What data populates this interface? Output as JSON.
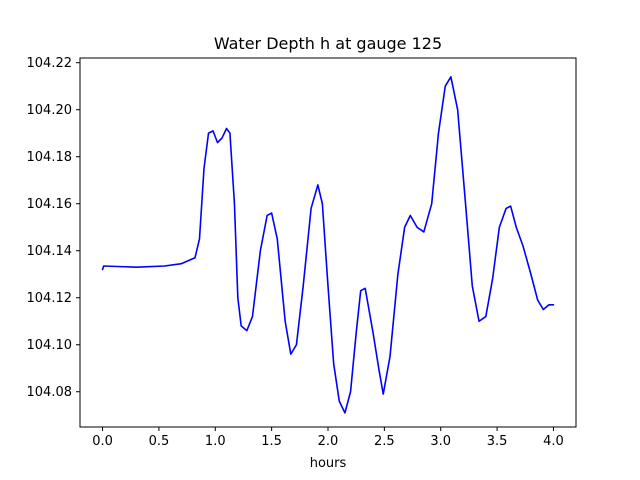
{
  "chart_data": {
    "type": "line",
    "title": "Water Depth h at gauge 125",
    "xlabel": "hours",
    "ylabel": "",
    "xlim": [
      -0.2,
      4.2
    ],
    "ylim": [
      104.065,
      104.222
    ],
    "xticks": [
      0.0,
      0.5,
      1.0,
      1.5,
      2.0,
      2.5,
      3.0,
      3.5,
      4.0
    ],
    "xtick_labels": [
      "0.0",
      "0.5",
      "1.0",
      "1.5",
      "2.0",
      "2.5",
      "3.0",
      "3.5",
      "4.0"
    ],
    "yticks": [
      104.08,
      104.1,
      104.12,
      104.14,
      104.16,
      104.18,
      104.2,
      104.22
    ],
    "ytick_labels": [
      "104.08",
      "104.10",
      "104.12",
      "104.14",
      "104.16",
      "104.18",
      "104.20",
      "104.22"
    ],
    "grid": false,
    "series": [
      {
        "color": "#0000ff",
        "points": [
          [
            0.0,
            104.132
          ],
          [
            0.01,
            104.1335
          ],
          [
            0.3,
            104.133
          ],
          [
            0.55,
            104.1335
          ],
          [
            0.7,
            104.1345
          ],
          [
            0.82,
            104.137
          ],
          [
            0.86,
            104.145
          ],
          [
            0.9,
            104.175
          ],
          [
            0.94,
            104.19
          ],
          [
            0.98,
            104.191
          ],
          [
            1.02,
            104.186
          ],
          [
            1.06,
            104.188
          ],
          [
            1.1,
            104.192
          ],
          [
            1.13,
            104.19
          ],
          [
            1.17,
            104.16
          ],
          [
            1.2,
            104.12
          ],
          [
            1.23,
            104.108
          ],
          [
            1.28,
            104.106
          ],
          [
            1.33,
            104.112
          ],
          [
            1.4,
            104.14
          ],
          [
            1.46,
            104.155
          ],
          [
            1.5,
            104.156
          ],
          [
            1.55,
            104.145
          ],
          [
            1.62,
            104.11
          ],
          [
            1.67,
            104.096
          ],
          [
            1.72,
            104.1
          ],
          [
            1.78,
            104.125
          ],
          [
            1.85,
            104.158
          ],
          [
            1.91,
            104.168
          ],
          [
            1.95,
            104.16
          ],
          [
            2.0,
            104.125
          ],
          [
            2.05,
            104.092
          ],
          [
            2.1,
            104.076
          ],
          [
            2.15,
            104.071
          ],
          [
            2.2,
            104.08
          ],
          [
            2.25,
            104.105
          ],
          [
            2.29,
            104.123
          ],
          [
            2.33,
            104.124
          ],
          [
            2.4,
            104.105
          ],
          [
            2.45,
            104.09
          ],
          [
            2.49,
            104.079
          ],
          [
            2.55,
            104.095
          ],
          [
            2.62,
            104.13
          ],
          [
            2.68,
            104.15
          ],
          [
            2.73,
            104.155
          ],
          [
            2.79,
            104.15
          ],
          [
            2.85,
            104.148
          ],
          [
            2.92,
            104.16
          ],
          [
            2.98,
            104.19
          ],
          [
            3.04,
            104.21
          ],
          [
            3.09,
            104.214
          ],
          [
            3.15,
            104.2
          ],
          [
            3.22,
            104.16
          ],
          [
            3.28,
            104.125
          ],
          [
            3.34,
            104.11
          ],
          [
            3.4,
            104.112
          ],
          [
            3.46,
            104.128
          ],
          [
            3.52,
            104.15
          ],
          [
            3.58,
            104.158
          ],
          [
            3.62,
            104.159
          ],
          [
            3.67,
            104.15
          ],
          [
            3.73,
            104.142
          ],
          [
            3.8,
            104.13
          ],
          [
            3.86,
            104.119
          ],
          [
            3.91,
            104.115
          ],
          [
            3.96,
            104.117
          ],
          [
            4.0,
            104.117
          ]
        ]
      }
    ]
  }
}
